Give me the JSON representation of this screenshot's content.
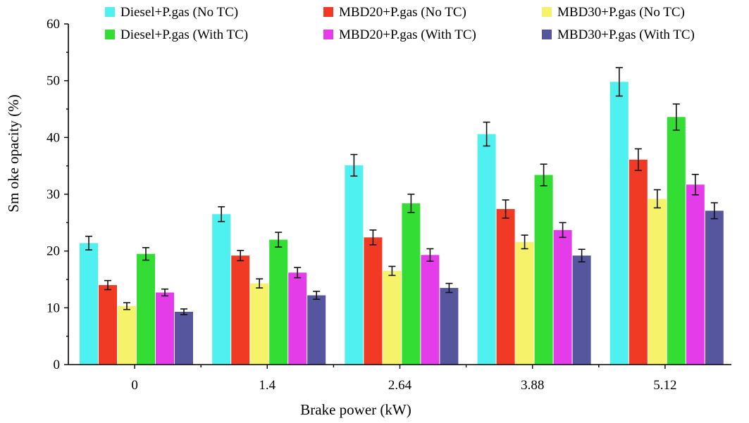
{
  "chart_data": {
    "type": "bar",
    "xlabel": "Brake power (kW)",
    "ylabel": "Sm oke opacity (%)",
    "ylim": [
      0,
      60
    ],
    "yticks": [
      0,
      10,
      20,
      30,
      40,
      50,
      60
    ],
    "categories": [
      "0",
      "1.4",
      "2.64",
      "3.88",
      "5.12"
    ],
    "legend_position": "top",
    "series": [
      {
        "name": "Diesel+P.gas (No TC)",
        "color": "#4ef0f0",
        "values": [
          21.4,
          26.5,
          35.1,
          40.6,
          49.8
        ],
        "errors": [
          1.2,
          1.3,
          1.9,
          2.1,
          2.5
        ]
      },
      {
        "name": "MBD20+P.gas (No TC)",
        "color": "#f03a24",
        "values": [
          14.0,
          19.2,
          22.4,
          27.4,
          36.1
        ],
        "errors": [
          0.8,
          0.9,
          1.3,
          1.6,
          1.9
        ]
      },
      {
        "name": "MBD30+P.gas (No TC)",
        "color": "#f6f36a",
        "values": [
          10.3,
          14.3,
          16.5,
          21.6,
          29.2
        ],
        "errors": [
          0.6,
          0.8,
          0.8,
          1.2,
          1.6
        ]
      },
      {
        "name": "Diesel+P.gas (With TC)",
        "color": "#33dd33",
        "values": [
          19.5,
          22.0,
          28.4,
          33.4,
          43.6
        ],
        "errors": [
          1.1,
          1.3,
          1.6,
          1.9,
          2.3
        ]
      },
      {
        "name": "MBD20+P.gas (With TC)",
        "color": "#e43ce8",
        "values": [
          12.7,
          16.2,
          19.3,
          23.7,
          31.7
        ],
        "errors": [
          0.6,
          0.9,
          1.1,
          1.3,
          1.8
        ]
      },
      {
        "name": "MBD30+P.gas (With TC)",
        "color": "#55569e",
        "values": [
          9.3,
          12.2,
          13.5,
          19.2,
          27.1
        ],
        "errors": [
          0.5,
          0.7,
          0.8,
          1.1,
          1.4
        ]
      }
    ]
  }
}
